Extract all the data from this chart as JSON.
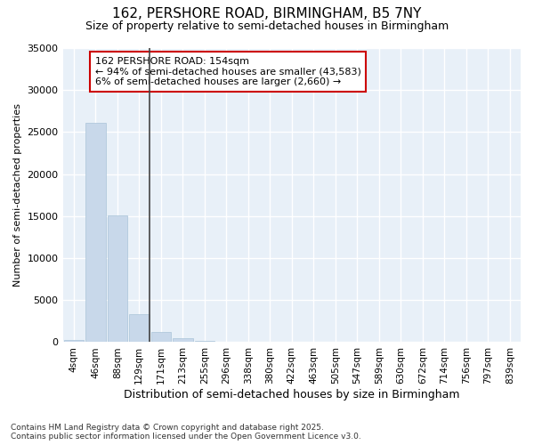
{
  "title_line1": "162, PERSHORE ROAD, BIRMINGHAM, B5 7NY",
  "title_line2": "Size of property relative to semi-detached houses in Birmingham",
  "xlabel": "Distribution of semi-detached houses by size in Birmingham",
  "ylabel": "Number of semi-detached properties",
  "categories": [
    "4sqm",
    "46sqm",
    "88sqm",
    "129sqm",
    "171sqm",
    "213sqm",
    "255sqm",
    "296sqm",
    "338sqm",
    "380sqm",
    "422sqm",
    "463sqm",
    "505sqm",
    "547sqm",
    "589sqm",
    "630sqm",
    "672sqm",
    "714sqm",
    "756sqm",
    "797sqm",
    "839sqm"
  ],
  "values": [
    300,
    26100,
    15100,
    3300,
    1200,
    430,
    190,
    100,
    0,
    0,
    0,
    0,
    0,
    0,
    0,
    0,
    0,
    0,
    0,
    0,
    0
  ],
  "bar_color": "#c8d8ea",
  "bar_edge_color": "#aac4d8",
  "highlight_index": 3,
  "ylim": [
    0,
    35000
  ],
  "yticks": [
    0,
    5000,
    10000,
    15000,
    20000,
    25000,
    30000,
    35000
  ],
  "annotation_title": "162 PERSHORE ROAD: 154sqm",
  "annotation_line2": "← 94% of semi-detached houses are smaller (43,583)",
  "annotation_line3": "6% of semi-detached houses are larger (2,660) →",
  "annotation_box_color": "#ffffff",
  "annotation_box_edge": "#cc0000",
  "footer_line1": "Contains HM Land Registry data © Crown copyright and database right 2025.",
  "footer_line2": "Contains public sector information licensed under the Open Government Licence v3.0.",
  "bg_color": "#ffffff",
  "plot_bg_color": "#e8f0f8",
  "grid_color": "#ffffff",
  "property_line_color": "#444444",
  "title_fontsize": 11,
  "subtitle_fontsize": 9,
  "ylabel_fontsize": 8,
  "xlabel_fontsize": 9,
  "tick_fontsize": 8,
  "xtick_fontsize": 7.5,
  "annotation_fontsize": 8,
  "footer_fontsize": 6.5
}
